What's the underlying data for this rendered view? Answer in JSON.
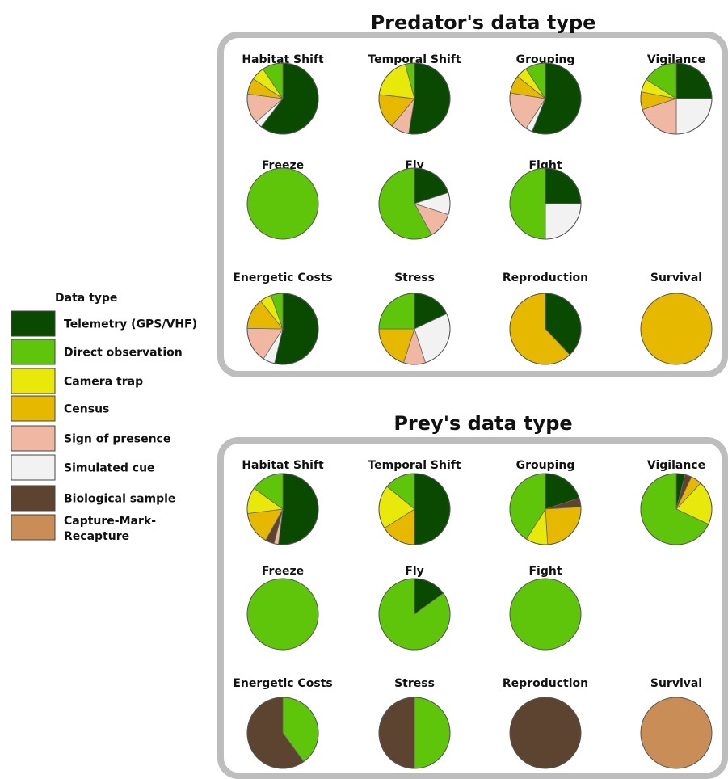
{
  "chart_data": {
    "type": "pie",
    "legend": {
      "title": "Data type",
      "placement": "left",
      "entries": [
        {
          "key": "telemetry",
          "label": "Telemetry (GPS/VHF)",
          "color": "#0a4a00"
        },
        {
          "key": "direct",
          "label": "Direct observation",
          "color": "#5fc50a"
        },
        {
          "key": "camera",
          "label": "Camera trap",
          "color": "#e8e80a"
        },
        {
          "key": "census",
          "label": "Census",
          "color": "#e6b800"
        },
        {
          "key": "sign",
          "label": "Sign of presence",
          "color": "#f0b8a2"
        },
        {
          "key": "simulated",
          "label": "Simulated cue",
          "color": "#f2f2f2"
        },
        {
          "key": "biological",
          "label": "Biological sample",
          "color": "#5c4430"
        },
        {
          "key": "cmr",
          "label": "Capture-Mark-Recapture",
          "label_lines": [
            "Capture-Mark-",
            "Recapture"
          ],
          "color": "#c98d58"
        }
      ]
    },
    "panels": [
      {
        "title": "Predator's data type",
        "pies": [
          {
            "label": "Habitat Shift",
            "slices": [
              {
                "type": "telemetry",
                "value": 58
              },
              {
                "type": "simulated",
                "value": 3
              },
              {
                "type": "sign",
                "value": 13
              },
              {
                "type": "census",
                "value": 7
              },
              {
                "type": "camera",
                "value": 6
              },
              {
                "type": "direct",
                "value": 9
              }
            ]
          },
          {
            "label": "Temporal Shift",
            "slices": [
              {
                "type": "telemetry",
                "value": 50
              },
              {
                "type": "sign",
                "value": 8
              },
              {
                "type": "census",
                "value": 15
              },
              {
                "type": "camera",
                "value": 18
              },
              {
                "type": "direct",
                "value": 4
              }
            ]
          },
          {
            "label": "Grouping",
            "slices": [
              {
                "type": "telemetry",
                "value": 55
              },
              {
                "type": "simulated",
                "value": 3
              },
              {
                "type": "sign",
                "value": 18
              },
              {
                "type": "census",
                "value": 8
              },
              {
                "type": "camera",
                "value": 5
              },
              {
                "type": "direct",
                "value": 9
              }
            ]
          },
          {
            "label": "Vigilance",
            "slices": [
              {
                "type": "telemetry",
                "value": 25
              },
              {
                "type": "simulated",
                "value": 25
              },
              {
                "type": "sign",
                "value": 20
              },
              {
                "type": "census",
                "value": 8
              },
              {
                "type": "camera",
                "value": 6
              },
              {
                "type": "direct",
                "value": 16
              }
            ]
          },
          {
            "label": "Freeze",
            "slices": [
              {
                "type": "direct",
                "value": 100
              }
            ]
          },
          {
            "label": "Fly",
            "slices": [
              {
                "type": "telemetry",
                "value": 20
              },
              {
                "type": "simulated",
                "value": 10
              },
              {
                "type": "sign",
                "value": 12
              },
              {
                "type": "direct",
                "value": 58
              }
            ]
          },
          {
            "label": "Fight",
            "slices": [
              {
                "type": "telemetry",
                "value": 25
              },
              {
                "type": "simulated",
                "value": 25
              },
              {
                "type": "direct",
                "value": 50
              }
            ]
          },
          {
            "label": "",
            "slices": []
          },
          {
            "label": "Energetic Costs",
            "slices": [
              {
                "type": "telemetry",
                "value": 50
              },
              {
                "type": "simulated",
                "value": 5
              },
              {
                "type": "sign",
                "value": 15
              },
              {
                "type": "census",
                "value": 13
              },
              {
                "type": "camera",
                "value": 5
              },
              {
                "type": "direct",
                "value": 5
              }
            ]
          },
          {
            "label": "Stress",
            "slices": [
              {
                "type": "telemetry",
                "value": 18
              },
              {
                "type": "simulated",
                "value": 27
              },
              {
                "type": "sign",
                "value": 10
              },
              {
                "type": "census",
                "value": 20
              },
              {
                "type": "direct",
                "value": 25
              }
            ]
          },
          {
            "label": "Reproduction",
            "slices": [
              {
                "type": "telemetry",
                "value": 38
              },
              {
                "type": "census",
                "value": 62
              }
            ]
          },
          {
            "label": "Survival",
            "slices": [
              {
                "type": "census",
                "value": 100
              }
            ]
          }
        ]
      },
      {
        "title": "Prey's data type",
        "pies": [
          {
            "label": "Habitat Shift",
            "slices": [
              {
                "type": "telemetry",
                "value": 52
              },
              {
                "type": "sign",
                "value": 2
              },
              {
                "type": "biological",
                "value": 4
              },
              {
                "type": "census",
                "value": 15
              },
              {
                "type": "camera",
                "value": 12
              },
              {
                "type": "direct",
                "value": 15
              }
            ]
          },
          {
            "label": "Temporal Shift",
            "slices": [
              {
                "type": "telemetry",
                "value": 50
              },
              {
                "type": "census",
                "value": 16
              },
              {
                "type": "camera",
                "value": 20
              },
              {
                "type": "direct",
                "value": 14
              }
            ]
          },
          {
            "label": "Grouping",
            "slices": [
              {
                "type": "telemetry",
                "value": 20
              },
              {
                "type": "biological",
                "value": 4
              },
              {
                "type": "census",
                "value": 25
              },
              {
                "type": "camera",
                "value": 10
              },
              {
                "type": "direct",
                "value": 41
              }
            ]
          },
          {
            "label": "Vigilance",
            "slices": [
              {
                "type": "telemetry",
                "value": 4
              },
              {
                "type": "biological",
                "value": 3
              },
              {
                "type": "census",
                "value": 5
              },
              {
                "type": "camera",
                "value": 20
              },
              {
                "type": "direct",
                "value": 68
              }
            ]
          },
          {
            "label": "Freeze",
            "slices": [
              {
                "type": "direct",
                "value": 100
              }
            ]
          },
          {
            "label": "Fly",
            "slices": [
              {
                "type": "telemetry",
                "value": 15
              },
              {
                "type": "direct",
                "value": 85
              }
            ]
          },
          {
            "label": "Fight",
            "slices": [
              {
                "type": "direct",
                "value": 100
              }
            ]
          },
          {
            "label": "",
            "slices": []
          },
          {
            "label": "Energetic Costs",
            "slices": [
              {
                "type": "direct",
                "value": 40
              },
              {
                "type": "biological",
                "value": 60
              }
            ]
          },
          {
            "label": "Stress",
            "slices": [
              {
                "type": "direct",
                "value": 50
              },
              {
                "type": "biological",
                "value": 50
              }
            ]
          },
          {
            "label": "Reproduction",
            "slices": [
              {
                "type": "biological",
                "value": 100
              }
            ]
          },
          {
            "label": "Survival",
            "slices": [
              {
                "type": "cmr",
                "value": 100
              }
            ]
          }
        ]
      }
    ]
  }
}
